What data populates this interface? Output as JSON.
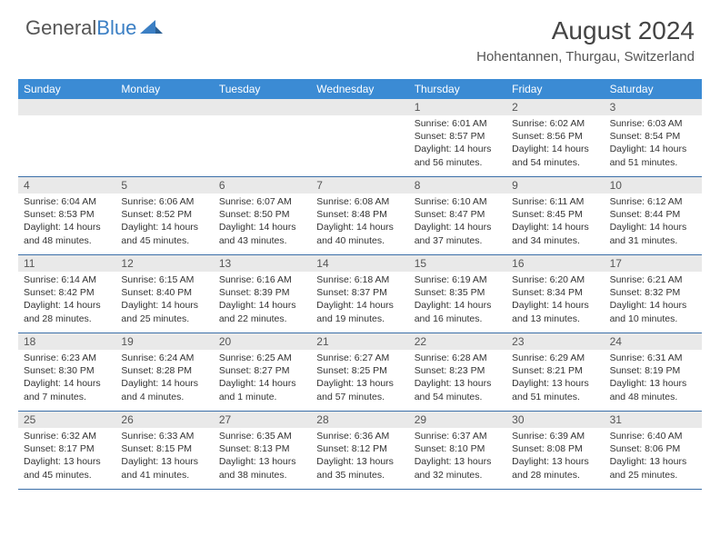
{
  "brand": {
    "part1": "General",
    "part2": "Blue"
  },
  "title": "August 2024",
  "location": "Hohentannen, Thurgau, Switzerland",
  "colors": {
    "header_bg": "#3b8bd4",
    "header_text": "#ffffff",
    "daynum_bg": "#e9e9e9",
    "row_divider": "#3b6fa8",
    "brand_blue": "#3b7fc4"
  },
  "layout": {
    "columns": 7,
    "rows": 5,
    "leading_blanks": 4
  },
  "dow": [
    "Sunday",
    "Monday",
    "Tuesday",
    "Wednesday",
    "Thursday",
    "Friday",
    "Saturday"
  ],
  "days": [
    {
      "n": 1,
      "sunrise": "6:01 AM",
      "sunset": "8:57 PM",
      "daylight": "14 hours and 56 minutes."
    },
    {
      "n": 2,
      "sunrise": "6:02 AM",
      "sunset": "8:56 PM",
      "daylight": "14 hours and 54 minutes."
    },
    {
      "n": 3,
      "sunrise": "6:03 AM",
      "sunset": "8:54 PM",
      "daylight": "14 hours and 51 minutes."
    },
    {
      "n": 4,
      "sunrise": "6:04 AM",
      "sunset": "8:53 PM",
      "daylight": "14 hours and 48 minutes."
    },
    {
      "n": 5,
      "sunrise": "6:06 AM",
      "sunset": "8:52 PM",
      "daylight": "14 hours and 45 minutes."
    },
    {
      "n": 6,
      "sunrise": "6:07 AM",
      "sunset": "8:50 PM",
      "daylight": "14 hours and 43 minutes."
    },
    {
      "n": 7,
      "sunrise": "6:08 AM",
      "sunset": "8:48 PM",
      "daylight": "14 hours and 40 minutes."
    },
    {
      "n": 8,
      "sunrise": "6:10 AM",
      "sunset": "8:47 PM",
      "daylight": "14 hours and 37 minutes."
    },
    {
      "n": 9,
      "sunrise": "6:11 AM",
      "sunset": "8:45 PM",
      "daylight": "14 hours and 34 minutes."
    },
    {
      "n": 10,
      "sunrise": "6:12 AM",
      "sunset": "8:44 PM",
      "daylight": "14 hours and 31 minutes."
    },
    {
      "n": 11,
      "sunrise": "6:14 AM",
      "sunset": "8:42 PM",
      "daylight": "14 hours and 28 minutes."
    },
    {
      "n": 12,
      "sunrise": "6:15 AM",
      "sunset": "8:40 PM",
      "daylight": "14 hours and 25 minutes."
    },
    {
      "n": 13,
      "sunrise": "6:16 AM",
      "sunset": "8:39 PM",
      "daylight": "14 hours and 22 minutes."
    },
    {
      "n": 14,
      "sunrise": "6:18 AM",
      "sunset": "8:37 PM",
      "daylight": "14 hours and 19 minutes."
    },
    {
      "n": 15,
      "sunrise": "6:19 AM",
      "sunset": "8:35 PM",
      "daylight": "14 hours and 16 minutes."
    },
    {
      "n": 16,
      "sunrise": "6:20 AM",
      "sunset": "8:34 PM",
      "daylight": "14 hours and 13 minutes."
    },
    {
      "n": 17,
      "sunrise": "6:21 AM",
      "sunset": "8:32 PM",
      "daylight": "14 hours and 10 minutes."
    },
    {
      "n": 18,
      "sunrise": "6:23 AM",
      "sunset": "8:30 PM",
      "daylight": "14 hours and 7 minutes."
    },
    {
      "n": 19,
      "sunrise": "6:24 AM",
      "sunset": "8:28 PM",
      "daylight": "14 hours and 4 minutes."
    },
    {
      "n": 20,
      "sunrise": "6:25 AM",
      "sunset": "8:27 PM",
      "daylight": "14 hours and 1 minute."
    },
    {
      "n": 21,
      "sunrise": "6:27 AM",
      "sunset": "8:25 PM",
      "daylight": "13 hours and 57 minutes."
    },
    {
      "n": 22,
      "sunrise": "6:28 AM",
      "sunset": "8:23 PM",
      "daylight": "13 hours and 54 minutes."
    },
    {
      "n": 23,
      "sunrise": "6:29 AM",
      "sunset": "8:21 PM",
      "daylight": "13 hours and 51 minutes."
    },
    {
      "n": 24,
      "sunrise": "6:31 AM",
      "sunset": "8:19 PM",
      "daylight": "13 hours and 48 minutes."
    },
    {
      "n": 25,
      "sunrise": "6:32 AM",
      "sunset": "8:17 PM",
      "daylight": "13 hours and 45 minutes."
    },
    {
      "n": 26,
      "sunrise": "6:33 AM",
      "sunset": "8:15 PM",
      "daylight": "13 hours and 41 minutes."
    },
    {
      "n": 27,
      "sunrise": "6:35 AM",
      "sunset": "8:13 PM",
      "daylight": "13 hours and 38 minutes."
    },
    {
      "n": 28,
      "sunrise": "6:36 AM",
      "sunset": "8:12 PM",
      "daylight": "13 hours and 35 minutes."
    },
    {
      "n": 29,
      "sunrise": "6:37 AM",
      "sunset": "8:10 PM",
      "daylight": "13 hours and 32 minutes."
    },
    {
      "n": 30,
      "sunrise": "6:39 AM",
      "sunset": "8:08 PM",
      "daylight": "13 hours and 28 minutes."
    },
    {
      "n": 31,
      "sunrise": "6:40 AM",
      "sunset": "8:06 PM",
      "daylight": "13 hours and 25 minutes."
    }
  ],
  "labels": {
    "sunrise": "Sunrise:",
    "sunset": "Sunset:",
    "daylight": "Daylight:"
  }
}
